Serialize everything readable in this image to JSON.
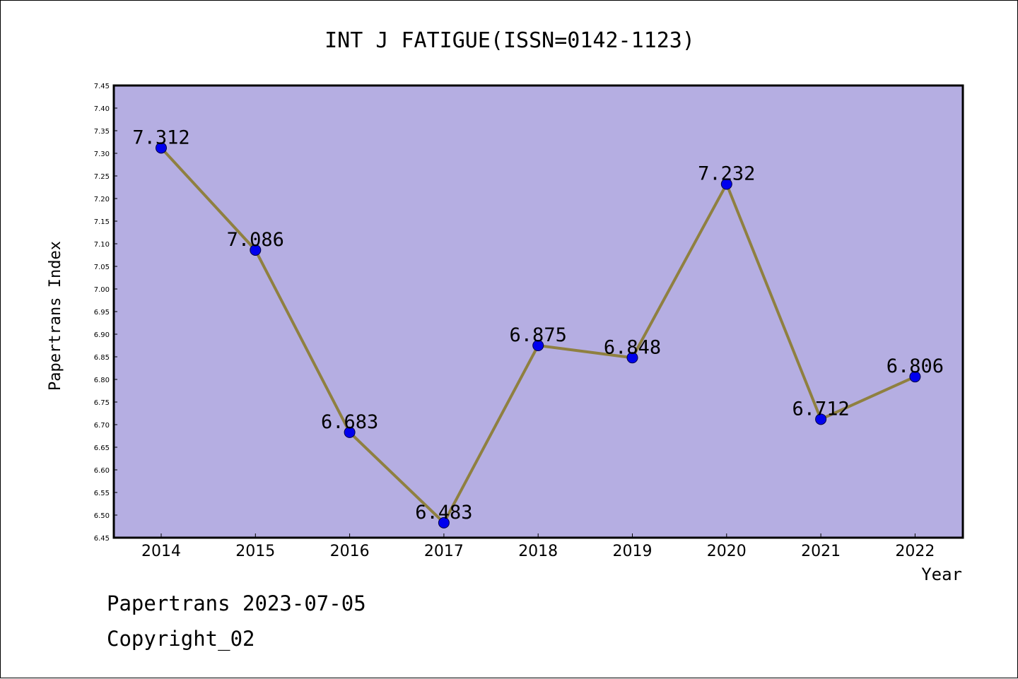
{
  "footer": {
    "line1": "Papertrans 2023-07-05",
    "line2": "Copyright_02"
  },
  "colors": {
    "plot_background": "#b5aee2",
    "line": "#8f8040",
    "marker": "#0000ee",
    "axis": "#000000"
  },
  "chart_data": {
    "type": "line",
    "title": "INT J FATIGUE(ISSN=0142-1123)",
    "xlabel": "Year",
    "ylabel": "Papertrans Index",
    "categories": [
      "2014",
      "2015",
      "2016",
      "2017",
      "2018",
      "2019",
      "2020",
      "2021",
      "2022"
    ],
    "series": [
      {
        "values": [
          7.312,
          7.086,
          6.683,
          6.483,
          6.875,
          6.848,
          7.232,
          6.712,
          6.806
        ],
        "labels": [
          "7.312",
          "7.086",
          "6.683",
          "6.483",
          "6.875",
          "6.848",
          "7.232",
          "6.712",
          "6.806"
        ]
      }
    ],
    "ylim": [
      6.45,
      7.45
    ],
    "yticks": [
      "6.45",
      "6.50",
      "6.55",
      "6.60",
      "6.65",
      "6.70",
      "6.75",
      "6.80",
      "6.85",
      "6.90",
      "6.95",
      "7.00",
      "7.05",
      "7.10",
      "7.15",
      "7.20",
      "7.25",
      "7.30",
      "7.35",
      "7.40",
      "7.45"
    ],
    "grid": false,
    "legend": "none"
  }
}
